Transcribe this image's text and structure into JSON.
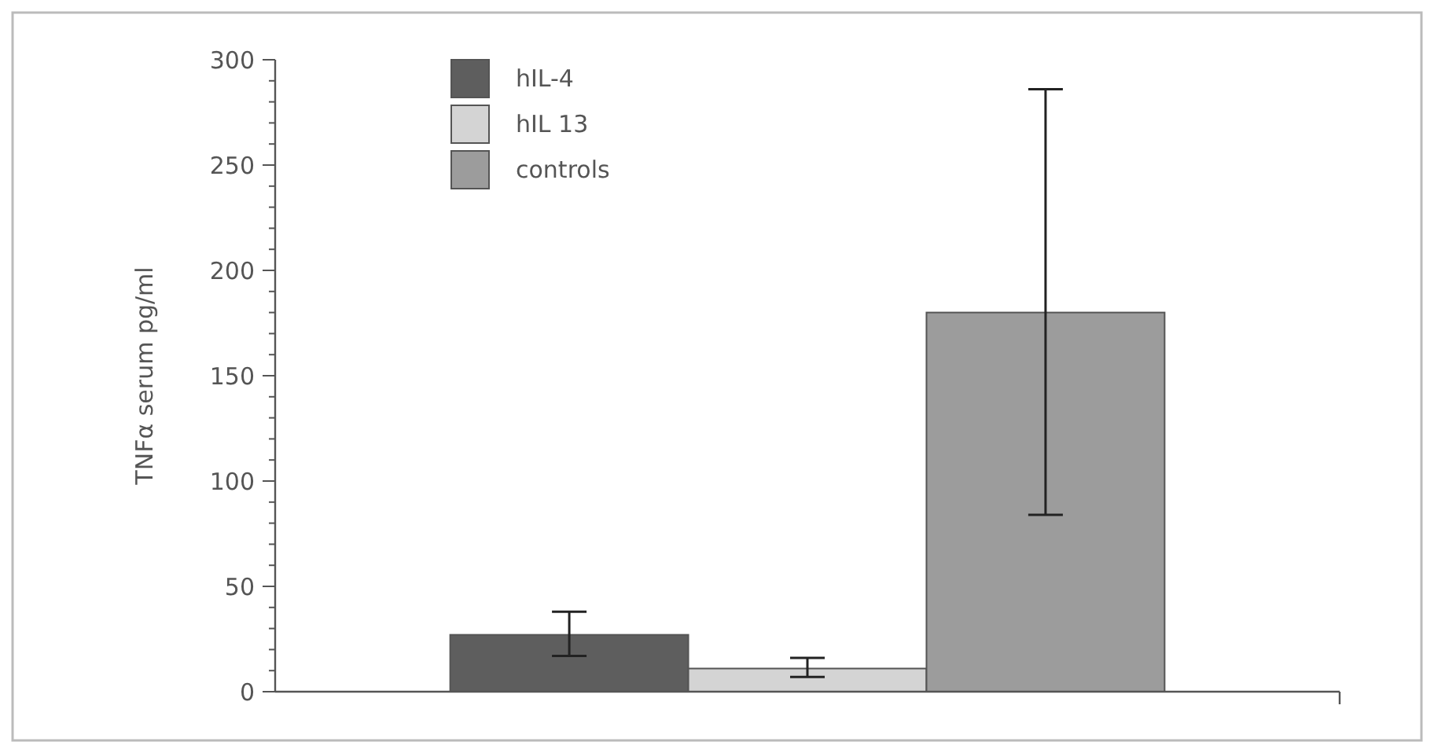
{
  "chart_data": {
    "type": "bar",
    "ylabel": "TNFα serum pg/ml",
    "categories": [
      null
    ],
    "series": [
      {
        "name": "hIL-4",
        "color": "#5e5e5e",
        "values": [
          27
        ],
        "errors": [
          [
            17,
            38
          ]
        ]
      },
      {
        "name": "hIL 13",
        "color": "#d4d4d4",
        "values": [
          11
        ],
        "errors": [
          [
            7,
            16
          ]
        ]
      },
      {
        "name": "controls",
        "color": "#9c9c9c",
        "values": [
          180
        ],
        "errors": [
          [
            84,
            286
          ]
        ]
      }
    ],
    "ylim": [
      0,
      300
    ],
    "yticks": [
      0,
      {
        "value": 10,
        "label": null
      },
      {
        "value": 20,
        "label": null
      },
      {
        "value": 30,
        "label": null
      },
      {
        "value": 40,
        "label": null
      },
      50,
      {
        "value": 60,
        "label": null
      },
      {
        "value": 70,
        "label": null
      },
      {
        "value": 80,
        "label": null
      },
      {
        "value": 90,
        "label": null
      },
      100,
      {
        "value": 110,
        "label": null
      },
      {
        "value": 120,
        "label": null
      },
      {
        "value": 130,
        "label": null
      },
      {
        "value": 140,
        "label": null
      },
      150,
      {
        "value": 160,
        "label": null
      },
      {
        "value": 170,
        "label": null
      },
      {
        "value": 180,
        "label": null
      },
      {
        "value": 190,
        "label": null
      },
      200,
      {
        "value": 210,
        "label": null
      },
      {
        "value": 220,
        "label": null
      },
      {
        "value": 230,
        "label": null
      },
      {
        "value": 240,
        "label": null
      },
      250,
      {
        "value": 260,
        "label": null
      },
      {
        "value": 270,
        "label": null
      },
      {
        "value": 280,
        "label": null
      },
      {
        "value": 290,
        "label": null
      },
      300
    ],
    "legend": "top left"
  }
}
